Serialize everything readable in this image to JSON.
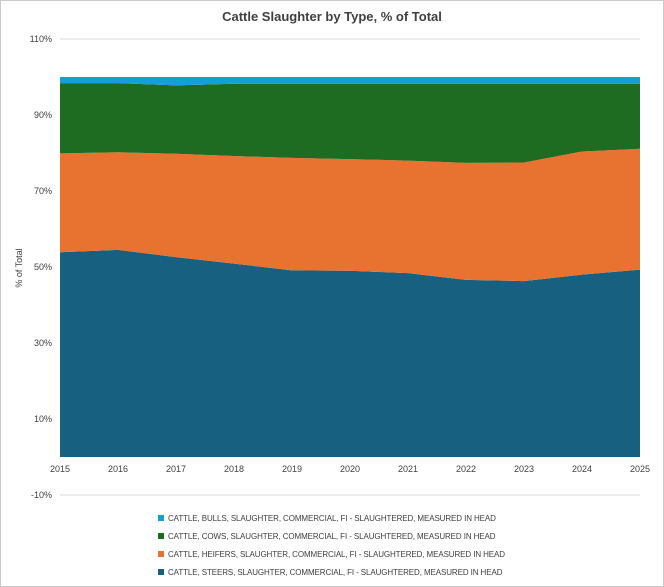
{
  "chart_data": {
    "type": "area",
    "stacked": true,
    "title": "Cattle Slaughter by Type, % of Total",
    "xlabel": "",
    "ylabel": "% of Total",
    "categories": [
      "2015",
      "2016",
      "2017",
      "2018",
      "2019",
      "2020",
      "2021",
      "2022",
      "2023",
      "2024",
      "2025"
    ],
    "ylim": [
      -10,
      110
    ],
    "y_ticks": [
      -10,
      10,
      30,
      50,
      70,
      90,
      110
    ],
    "y_tick_labels": [
      "-10%",
      "10%",
      "30%",
      "50%",
      "70%",
      "90%",
      "110%"
    ],
    "grid": true,
    "legend_position": "bottom",
    "series": [
      {
        "name": "CATTLE, STEERS, SLAUGHTER, COMMERCIAL, FI - SLAUGHTERED, MEASURED IN HEAD",
        "color": "#17607f",
        "values": [
          53.9,
          54.5,
          52.6,
          50.9,
          49.1,
          49.0,
          48.4,
          46.6,
          46.3,
          48.0,
          49.3
        ]
      },
      {
        "name": "CATTLE, HEIFERS, SLAUGHTER, COMMERCIAL, FI - SLAUGHTERED, MEASURED IN HEAD",
        "color": "#e87230",
        "values": [
          26.0,
          25.7,
          27.2,
          28.3,
          29.6,
          29.4,
          29.6,
          30.8,
          31.2,
          32.4,
          31.8
        ]
      },
      {
        "name": "CATTLE, COWS, SLAUGHTER, COMMERCIAL, FI - SLAUGHTERED, MEASURED IN HEAD",
        "color": "#1e6b22",
        "values": [
          18.5,
          18.2,
          18.0,
          19.0,
          19.5,
          19.8,
          20.2,
          20.8,
          20.7,
          17.8,
          17.1
        ]
      },
      {
        "name": "CATTLE, BULLS, SLAUGHTER, COMMERCIAL, FI - SLAUGHTERED, MEASURED IN HEAD",
        "color": "#159ed8",
        "values": [
          1.6,
          1.6,
          2.2,
          1.8,
          1.8,
          1.8,
          1.8,
          1.8,
          1.8,
          1.8,
          1.8
        ]
      }
    ],
    "legend_order": [
      3,
      2,
      1,
      0
    ]
  }
}
